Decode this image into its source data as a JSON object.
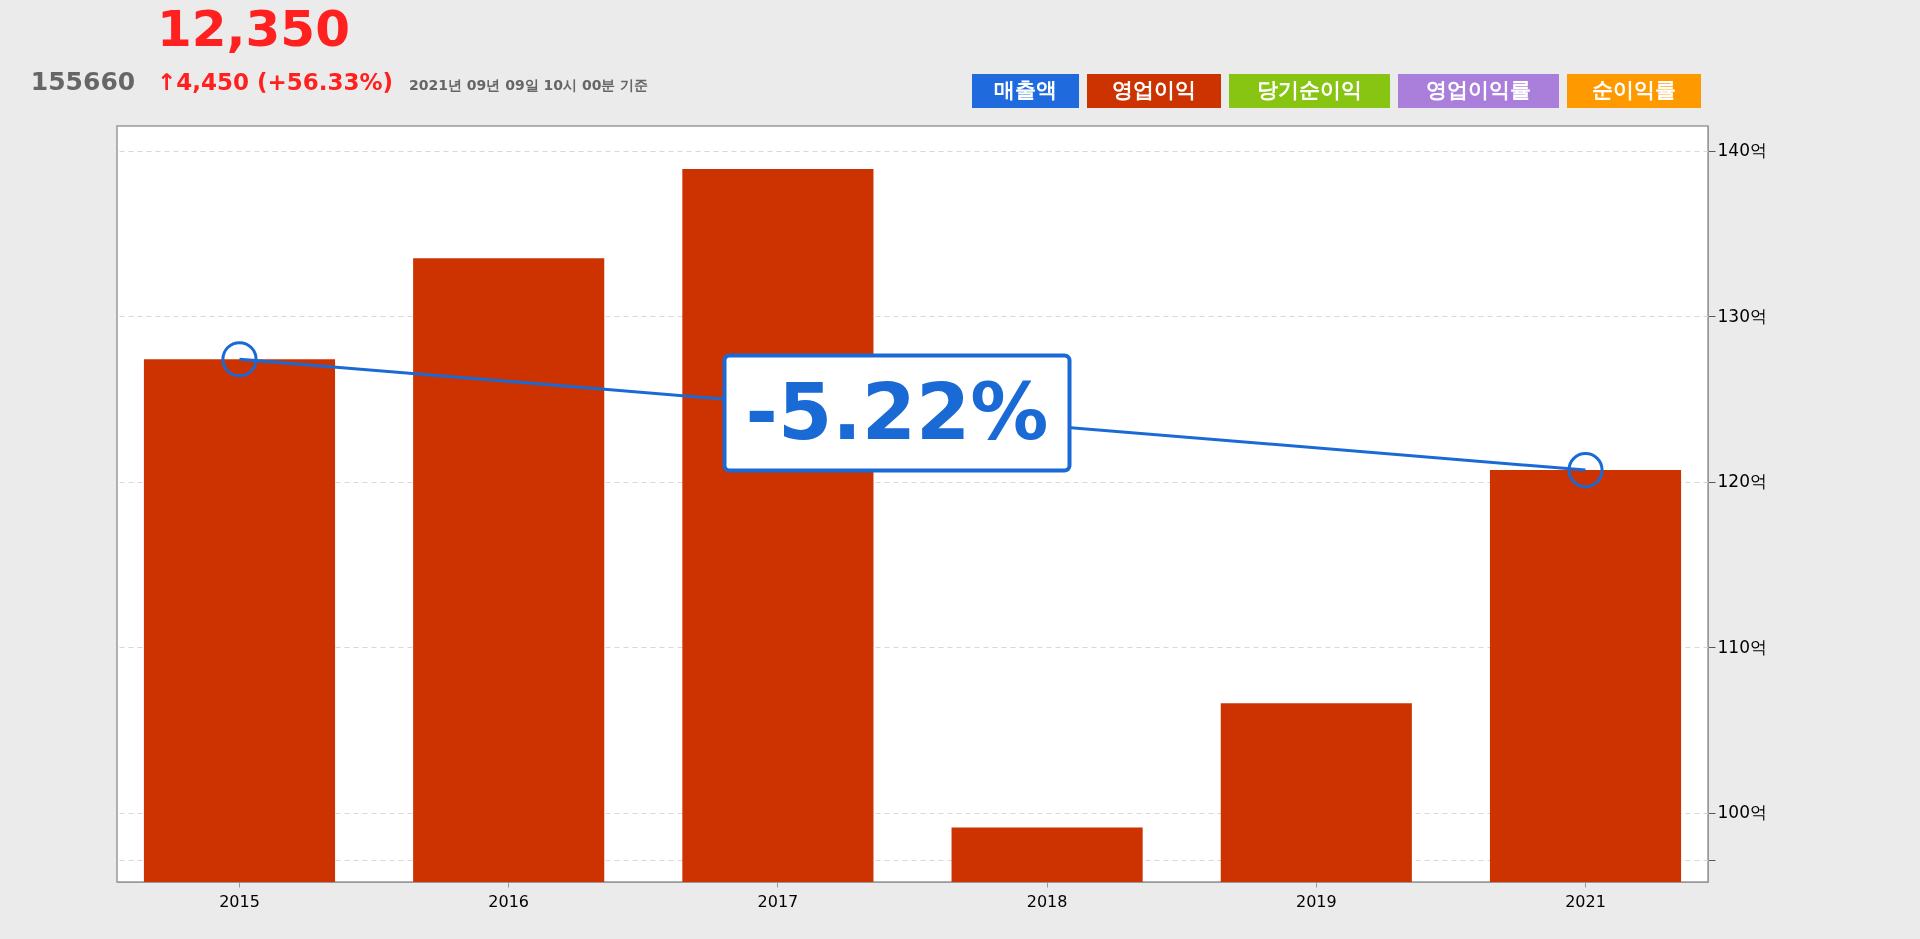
{
  "chart_data": {
    "type": "bar",
    "annotations": [
      "155660",
      "12,350",
      "↑4,450 (+56.33%)",
      "2021년 09년 09일 10시 00분 기준",
      {
        "text": "-5.22%"
      }
    ],
    "categories": [
      "2015",
      "2016",
      "2017",
      "2018",
      "2019",
      "2021"
    ],
    "series": [
      {
        "name": "매출액",
        "color": "#1f6bde",
        "values": [
          null,
          null,
          null,
          null,
          null,
          null
        ]
      },
      {
        "name": "영업이익",
        "color": "#cc3300",
        "values": [
          127.4,
          133.5,
          138.9,
          99.1,
          106.6,
          120.7
        ]
      },
      {
        "name": "당기순이익",
        "color": "#88c412",
        "values": [
          null,
          null,
          null,
          null,
          null,
          null
        ]
      },
      {
        "name": "영업이익률",
        "color": "#a97fdb",
        "values": [
          null,
          null,
          null,
          null,
          null,
          null
        ]
      },
      {
        "name": "순이익률",
        "color": "#ff9900",
        "values": [
          null,
          null,
          null,
          null,
          null,
          null
        ]
      },
      {
        "type": "line",
        "color": "#1a6ad6",
        "values": [
          127.4,
          null,
          null,
          null,
          null,
          120.7
        ],
        "marker": "circle"
      }
    ],
    "ylim": [
      95.8,
      141.5
    ],
    "yticks": [
      {
        "value": 97.1,
        "label": null
      },
      {
        "value": 100,
        "label": "100억"
      },
      {
        "value": 110,
        "label": "110억"
      },
      {
        "value": 120,
        "label": "120억"
      },
      {
        "value": 130,
        "label": "130억"
      },
      {
        "value": 140,
        "label": "140억"
      }
    ],
    "grid": "y",
    "legend": "top right"
  }
}
